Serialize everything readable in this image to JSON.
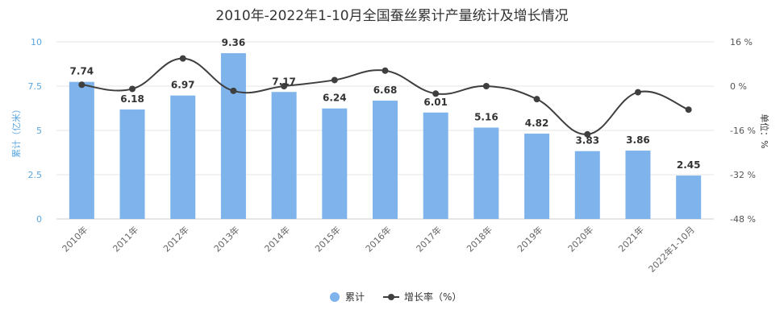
{
  "chart_data": {
    "type": "bar+line",
    "title": "2010年-2022年1-10月全国蚕丝累计产量统计及增长情况",
    "categories": [
      "2010年",
      "2011年",
      "2012年",
      "2013年",
      "2014年",
      "2015年",
      "2016年",
      "2017年",
      "2018年",
      "2019年",
      "2020年",
      "2021年",
      "2022年1-10月"
    ],
    "series": [
      {
        "name": "累计",
        "type": "bar",
        "axis": "left",
        "color": "#7eb3eb",
        "values": [
          7.74,
          6.18,
          6.97,
          9.36,
          7.17,
          6.24,
          6.68,
          6.01,
          5.16,
          4.82,
          3.83,
          3.86,
          2.45
        ],
        "labels": [
          "7.74",
          "6.18",
          "6.97",
          "9.36",
          "7.17",
          "6.24",
          "6.68",
          "6.01",
          "5.16",
          "4.82",
          "3.83",
          "3.86",
          "2.45"
        ]
      },
      {
        "name": "增长率（%）",
        "type": "line",
        "axis": "right",
        "color": "#3f3f3f",
        "values": [
          0.5,
          -1,
          10,
          -1.7,
          0,
          2.2,
          5.6,
          -2.7,
          0,
          -4.7,
          -17.4,
          -2.2,
          -8.5
        ]
      }
    ],
    "left_axis": {
      "label": "累计（亿米）",
      "range": [
        0,
        10
      ],
      "ticks": [
        "0",
        "2.5",
        "5",
        "7.5",
        "10"
      ],
      "color": "#5aa7e3"
    },
    "right_axis": {
      "label": "单位：%",
      "range": [
        -48,
        16
      ],
      "ticks": [
        "-48 %",
        "-32 %",
        "-16 %",
        "0 %",
        "16 %"
      ]
    },
    "legend": {
      "position": "bottom",
      "items": [
        "累计",
        "增长率（%）"
      ]
    },
    "grid": true
  }
}
